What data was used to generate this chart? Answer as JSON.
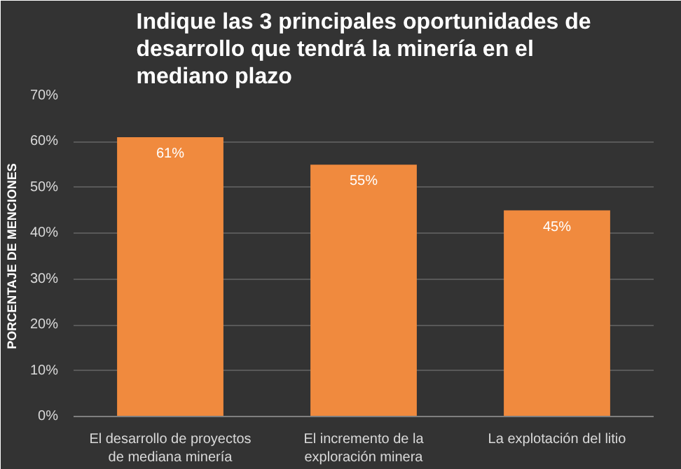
{
  "chart_data": {
    "type": "bar",
    "title": "Indique las 3 principales oportunidades de desarrollo que tendrá la minería en el mediano plazo",
    "ylabel": "PORCENTAJE DE MENCIONES",
    "categories": [
      "El desarrollo de proyectos de mediana minería",
      "El incremento de la exploración minera",
      "La explotación del litio"
    ],
    "values": [
      61,
      55,
      45
    ],
    "value_labels": [
      "61%",
      "55%",
      "45%"
    ],
    "color": "#f08a3e",
    "ylim": [
      0,
      70
    ],
    "yticks": [
      {
        "value": 0,
        "label": "0%"
      },
      {
        "value": 10,
        "label": "10%"
      },
      {
        "value": 20,
        "label": "20%"
      },
      {
        "value": 30,
        "label": "30%"
      },
      {
        "value": 40,
        "label": "40%"
      },
      {
        "value": 50,
        "label": "50%"
      },
      {
        "value": 60,
        "label": "60%"
      },
      {
        "value": 70,
        "label": "70%"
      }
    ],
    "grid": "y"
  }
}
